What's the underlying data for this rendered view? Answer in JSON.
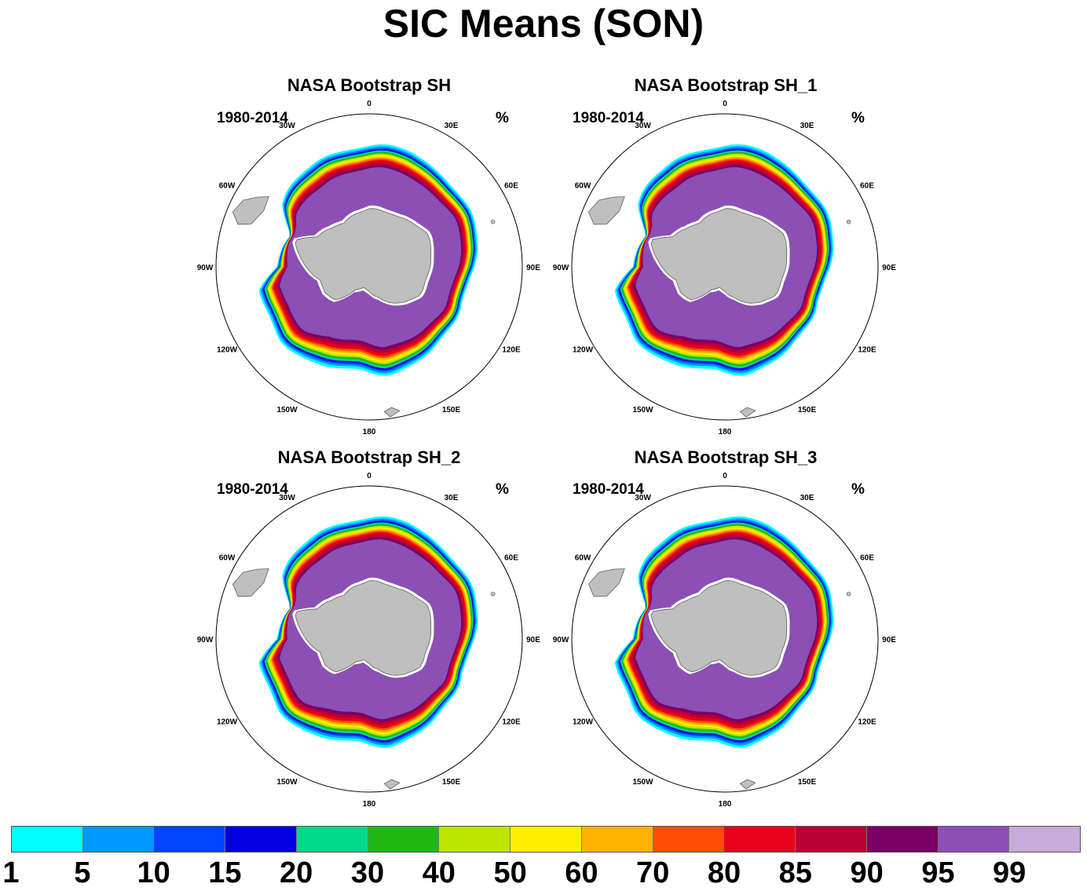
{
  "title": "SIC Means (SON)",
  "panels": [
    {
      "title": "NASA Bootstrap SH",
      "period": "1980-2014",
      "units": "%"
    },
    {
      "title": "NASA Bootstrap SH_1",
      "period": "1980-2014",
      "units": "%"
    },
    {
      "title": "NASA Bootstrap SH_2",
      "period": "1980-2014",
      "units": "%"
    },
    {
      "title": "NASA Bootstrap SH_3",
      "period": "1980-2014",
      "units": "%"
    }
  ],
  "longitude_labels": [
    "0",
    "30E",
    "60E",
    "90E",
    "120E",
    "150E",
    "180",
    "150W",
    "120W",
    "90W",
    "60W",
    "30W"
  ],
  "colorbar": {
    "levels": [
      "1",
      "5",
      "10",
      "15",
      "20",
      "30",
      "40",
      "50",
      "60",
      "70",
      "80",
      "85",
      "90",
      "95",
      "99"
    ],
    "colors": [
      "#00ffff",
      "#0099ff",
      "#0044ff",
      "#0000e0",
      "#00d98c",
      "#22b813",
      "#bde600",
      "#ffee00",
      "#ffb300",
      "#ff4d00",
      "#e8001a",
      "#b80032",
      "#7a0066",
      "#8b4fb5",
      "#c6abdb"
    ]
  },
  "colors": {
    "land": "#bfbfbf",
    "land_edge": "#606060",
    "ocean": "#ffffff",
    "map_border": "#000000"
  }
}
